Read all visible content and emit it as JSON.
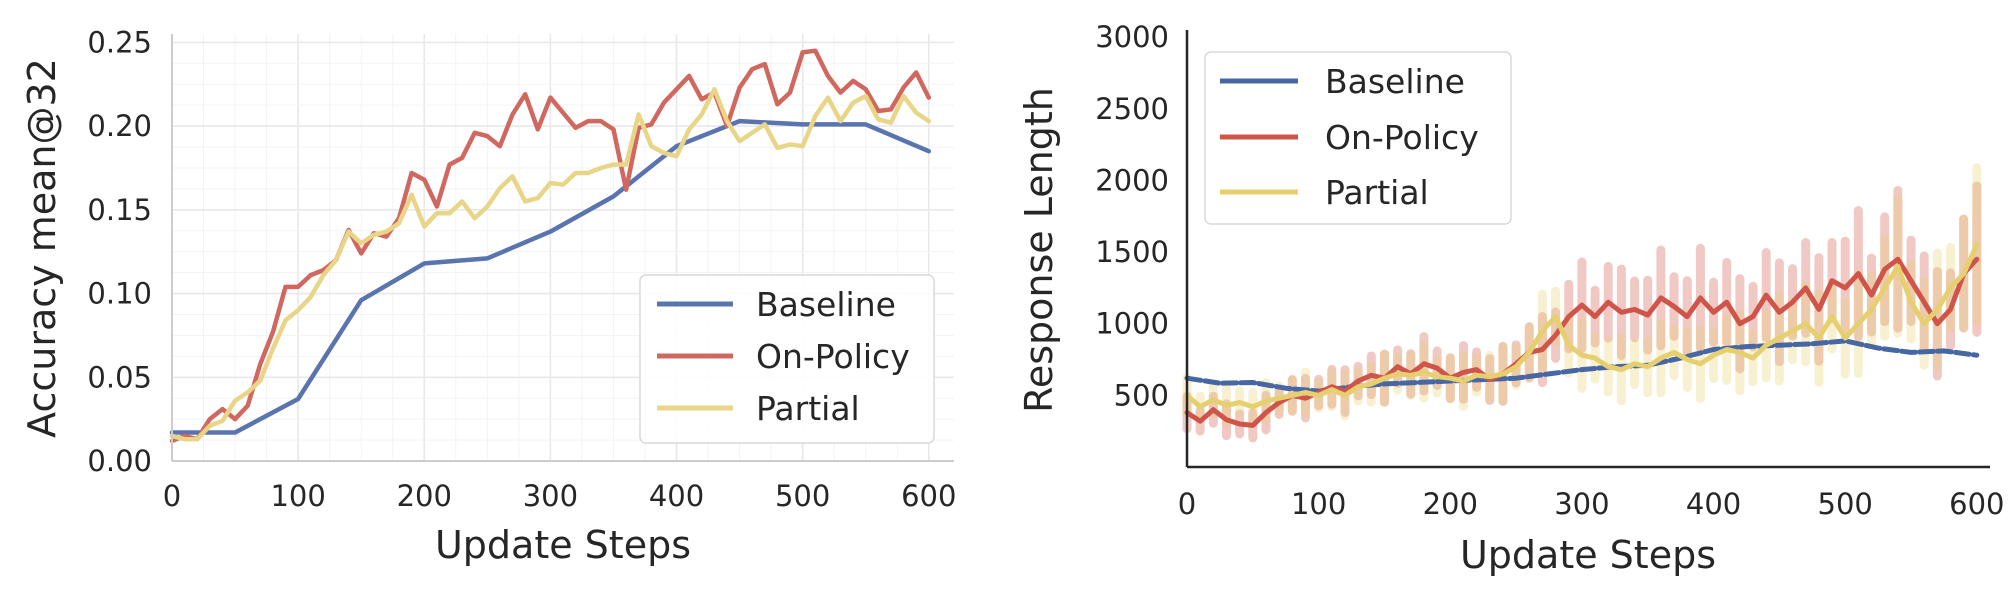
{
  "chart_data": [
    {
      "type": "line",
      "title": "",
      "xlabel": "Update Steps",
      "ylabel": "Accuracy mean@32",
      "xlim": [
        0,
        620
      ],
      "ylim": [
        0,
        0.255
      ],
      "xticks": [
        0,
        100,
        200,
        300,
        400,
        500,
        600
      ],
      "xtick_labels": [
        "0",
        "100",
        "200",
        "300",
        "400",
        "500",
        "600"
      ],
      "yticks": [
        0,
        0.05,
        0.1,
        0.15,
        0.2,
        0.25
      ],
      "ytick_labels": [
        "0.00",
        "0.05",
        "0.10",
        "0.15",
        "0.20",
        "0.25"
      ],
      "grid": true,
      "legend_position": "lower-right",
      "series": [
        {
          "name": "Baseline",
          "color": "#5a74b0",
          "x": [
            0,
            50,
            100,
            150,
            200,
            250,
            300,
            350,
            400,
            450,
            500,
            550,
            600
          ],
          "y": [
            0.017,
            0.017,
            0.037,
            0.096,
            0.118,
            0.121,
            0.137,
            0.158,
            0.188,
            0.203,
            0.201,
            0.201,
            0.185
          ]
        },
        {
          "name": "On-Policy",
          "color": "#d1685f",
          "x": [
            0,
            10,
            20,
            30,
            40,
            50,
            60,
            70,
            80,
            90,
            100,
            110,
            120,
            130,
            140,
            150,
            160,
            170,
            180,
            190,
            200,
            210,
            220,
            230,
            240,
            250,
            260,
            270,
            280,
            290,
            300,
            310,
            320,
            330,
            340,
            350,
            360,
            370,
            380,
            390,
            400,
            410,
            420,
            430,
            440,
            450,
            460,
            470,
            480,
            490,
            500,
            510,
            520,
            530,
            540,
            550,
            560,
            570,
            580,
            590,
            600
          ],
          "y": [
            0.012,
            0.015,
            0.013,
            0.025,
            0.031,
            0.025,
            0.033,
            0.058,
            0.077,
            0.104,
            0.104,
            0.111,
            0.114,
            0.12,
            0.138,
            0.124,
            0.136,
            0.134,
            0.145,
            0.172,
            0.168,
            0.152,
            0.177,
            0.181,
            0.196,
            0.194,
            0.188,
            0.207,
            0.219,
            0.198,
            0.217,
            0.208,
            0.199,
            0.203,
            0.203,
            0.198,
            0.162,
            0.199,
            0.201,
            0.214,
            0.222,
            0.23,
            0.216,
            0.22,
            0.2,
            0.223,
            0.234,
            0.237,
            0.213,
            0.22,
            0.244,
            0.245,
            0.23,
            0.22,
            0.227,
            0.222,
            0.209,
            0.21,
            0.223,
            0.232,
            0.217
          ]
        },
        {
          "name": "Partial",
          "color": "#e9d588",
          "x": [
            0,
            10,
            20,
            30,
            40,
            50,
            60,
            70,
            80,
            90,
            100,
            110,
            120,
            130,
            140,
            150,
            160,
            170,
            180,
            190,
            200,
            210,
            220,
            230,
            240,
            250,
            260,
            270,
            280,
            290,
            300,
            310,
            320,
            330,
            340,
            350,
            360,
            370,
            380,
            390,
            400,
            410,
            420,
            430,
            440,
            450,
            460,
            470,
            480,
            490,
            500,
            510,
            520,
            530,
            540,
            550,
            560,
            570,
            580,
            590,
            600
          ],
          "y": [
            0.015,
            0.013,
            0.013,
            0.021,
            0.024,
            0.036,
            0.041,
            0.048,
            0.067,
            0.084,
            0.09,
            0.098,
            0.111,
            0.12,
            0.137,
            0.13,
            0.135,
            0.137,
            0.142,
            0.159,
            0.14,
            0.148,
            0.148,
            0.155,
            0.145,
            0.152,
            0.163,
            0.17,
            0.155,
            0.157,
            0.166,
            0.165,
            0.172,
            0.172,
            0.175,
            0.177,
            0.177,
            0.207,
            0.188,
            0.184,
            0.182,
            0.198,
            0.207,
            0.222,
            0.203,
            0.191,
            0.196,
            0.201,
            0.187,
            0.189,
            0.188,
            0.206,
            0.217,
            0.203,
            0.214,
            0.218,
            0.204,
            0.202,
            0.218,
            0.208,
            0.203
          ]
        }
      ]
    },
    {
      "type": "line",
      "title": "",
      "xlabel": "Update Steps",
      "ylabel": "Response Length",
      "xlim": [
        0,
        610
      ],
      "ylim": [
        0,
        3050
      ],
      "xticks": [
        0,
        100,
        200,
        300,
        400,
        500,
        600
      ],
      "xtick_labels": [
        "0",
        "100",
        "200",
        "300",
        "400",
        "500",
        "600"
      ],
      "yticks": [
        500,
        1000,
        1500,
        2000,
        2500,
        3000
      ],
      "ytick_labels": [
        "500",
        "1000",
        "1500",
        "2000",
        "2500",
        "3000"
      ],
      "grid": false,
      "legend_position": "upper-left",
      "series": [
        {
          "name": "Baseline",
          "color": "#4767a3",
          "x": [
            0,
            25,
            50,
            75,
            100,
            125,
            150,
            175,
            200,
            225,
            250,
            275,
            300,
            325,
            350,
            375,
            400,
            425,
            450,
            475,
            500,
            525,
            550,
            575,
            600
          ],
          "y": [
            620,
            585,
            590,
            550,
            530,
            560,
            580,
            590,
            600,
            610,
            620,
            650,
            680,
            700,
            710,
            760,
            820,
            840,
            850,
            860,
            880,
            830,
            800,
            810,
            780
          ]
        },
        {
          "name": "On-Policy",
          "color": "#cf5449",
          "x": [
            0,
            10,
            20,
            30,
            40,
            50,
            60,
            70,
            80,
            90,
            100,
            110,
            120,
            130,
            140,
            150,
            160,
            170,
            180,
            190,
            200,
            210,
            220,
            230,
            240,
            250,
            260,
            270,
            280,
            290,
            300,
            310,
            320,
            330,
            340,
            350,
            360,
            370,
            380,
            390,
            400,
            410,
            420,
            430,
            440,
            450,
            460,
            470,
            480,
            490,
            500,
            510,
            520,
            530,
            540,
            550,
            560,
            570,
            580,
            590,
            600
          ],
          "y": [
            380,
            320,
            400,
            330,
            300,
            290,
            380,
            450,
            500,
            480,
            520,
            560,
            530,
            600,
            640,
            620,
            700,
            650,
            720,
            690,
            620,
            660,
            680,
            610,
            650,
            720,
            800,
            820,
            920,
            1050,
            1130,
            1050,
            1150,
            1080,
            1100,
            1060,
            1180,
            1120,
            1050,
            1180,
            1080,
            1150,
            1000,
            1050,
            1200,
            1080,
            1150,
            1250,
            1100,
            1300,
            1250,
            1350,
            1200,
            1380,
            1450,
            1300,
            1150,
            1000,
            1100,
            1350,
            1450
          ]
        },
        {
          "name": "Partial",
          "color": "#e6cf6f",
          "x": [
            0,
            10,
            20,
            30,
            40,
            50,
            60,
            70,
            80,
            90,
            100,
            110,
            120,
            130,
            140,
            150,
            160,
            170,
            180,
            190,
            200,
            210,
            220,
            230,
            240,
            250,
            260,
            270,
            280,
            290,
            300,
            310,
            320,
            330,
            340,
            350,
            360,
            370,
            380,
            390,
            400,
            410,
            420,
            430,
            440,
            450,
            460,
            470,
            480,
            490,
            500,
            510,
            520,
            530,
            540,
            550,
            560,
            570,
            580,
            590,
            600
          ],
          "y": [
            500,
            420,
            470,
            430,
            450,
            420,
            460,
            480,
            500,
            520,
            500,
            540,
            500,
            560,
            580,
            620,
            650,
            640,
            660,
            630,
            620,
            600,
            640,
            630,
            650,
            700,
            800,
            950,
            1050,
            850,
            780,
            760,
            700,
            680,
            720,
            700,
            760,
            800,
            750,
            720,
            780,
            820,
            800,
            760,
            850,
            900,
            950,
            1000,
            900,
            1050,
            900,
            1000,
            1100,
            1250,
            1400,
            1150,
            1000,
            1100,
            1250,
            1350,
            1550
          ]
        }
      ]
    }
  ]
}
